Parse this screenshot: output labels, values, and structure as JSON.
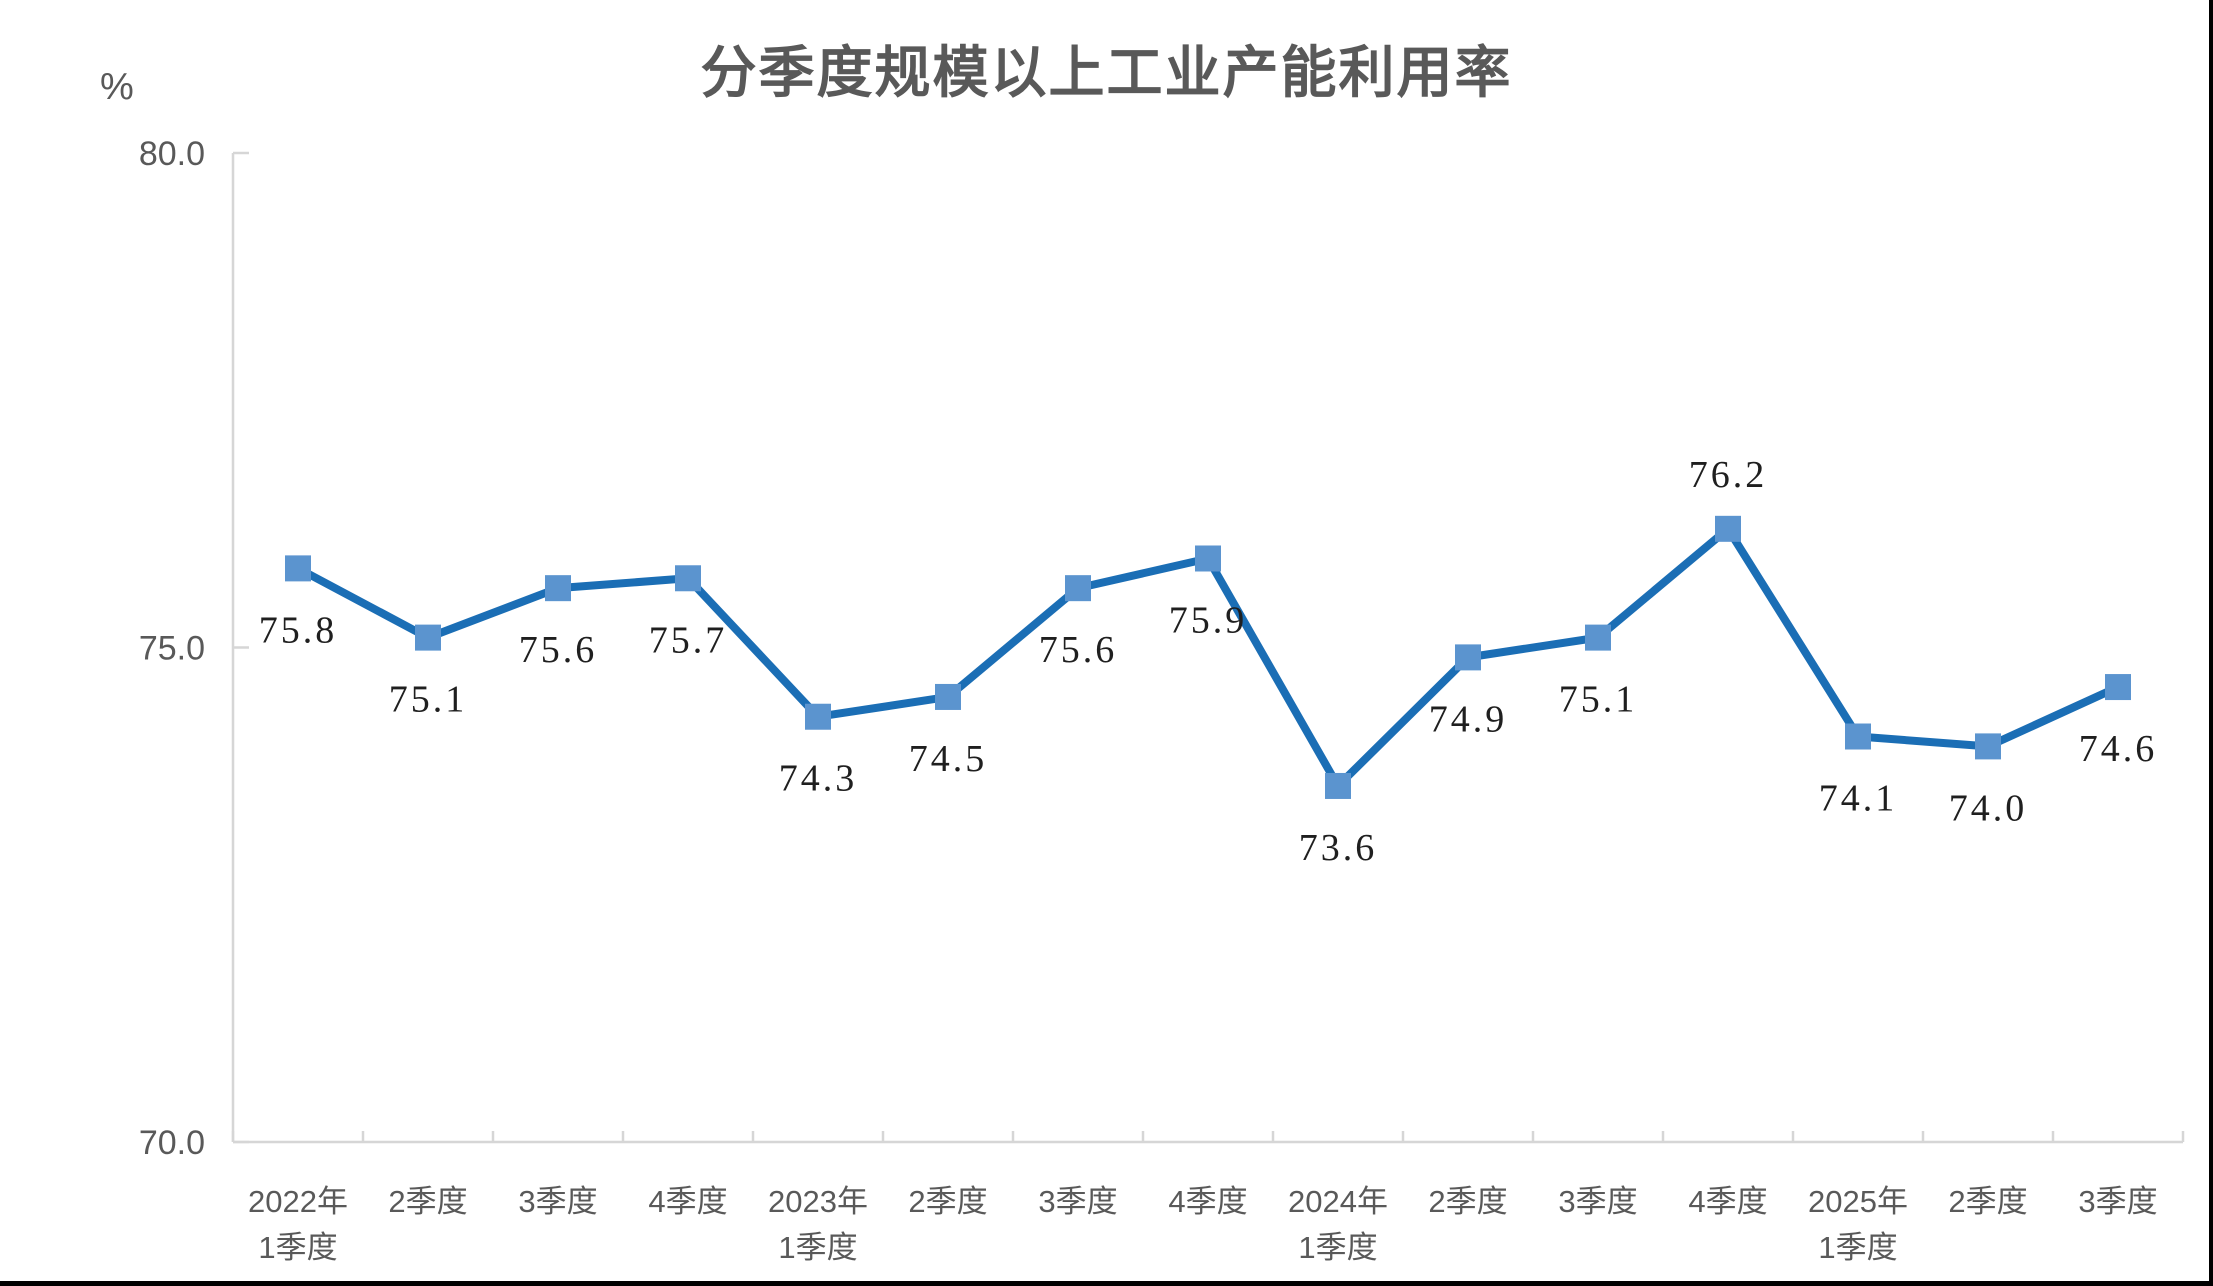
{
  "chart": {
    "title": "分季度规模以上工业产能利用率",
    "unit_label": "%",
    "colors": {
      "line": "#1B6EB5",
      "marker": "#5B94CF",
      "axis": "#D6D6D6",
      "axis_text": "#595959",
      "title_text": "#595959",
      "data_label_text": "#1F1F1F",
      "background": "#FFFFFF",
      "edge_border": "#000000"
    }
  },
  "chart_data": {
    "type": "line",
    "title": "分季度规模以上工业产能利用率",
    "ylabel": "%",
    "xlabel": "",
    "ylim": [
      70.0,
      80.0
    ],
    "ytick_values": [
      80.0,
      75.0,
      70.0
    ],
    "ytick_labels": [
      "80.0",
      "75.0",
      "70.0"
    ],
    "grid": false,
    "legend": "none",
    "marker": "square",
    "categories": [
      [
        "2022年",
        "1季度"
      ],
      [
        "2季度"
      ],
      [
        "3季度"
      ],
      [
        "4季度"
      ],
      [
        "2023年",
        "1季度"
      ],
      [
        "2季度"
      ],
      [
        "3季度"
      ],
      [
        "4季度"
      ],
      [
        "2024年",
        "1季度"
      ],
      [
        "2季度"
      ],
      [
        "3季度"
      ],
      [
        "4季度"
      ],
      [
        "2025年",
        "1季度"
      ],
      [
        "2季度"
      ],
      [
        "3季度"
      ]
    ],
    "values": [
      75.8,
      75.1,
      75.6,
      75.7,
      74.3,
      74.5,
      75.6,
      75.9,
      73.6,
      74.9,
      75.1,
      76.2,
      74.1,
      74.0,
      74.6
    ],
    "data_labels": [
      "75.8",
      "75.1",
      "75.6",
      "75.7",
      "74.3",
      "74.5",
      "75.6",
      "75.9",
      "73.6",
      "74.9",
      "75.1",
      "76.2",
      "74.1",
      "74.0",
      "74.6"
    ],
    "label_side": [
      "below",
      "below",
      "below",
      "below",
      "below",
      "below",
      "below",
      "below",
      "below",
      "below",
      "below",
      "above",
      "below",
      "below",
      "below"
    ]
  }
}
